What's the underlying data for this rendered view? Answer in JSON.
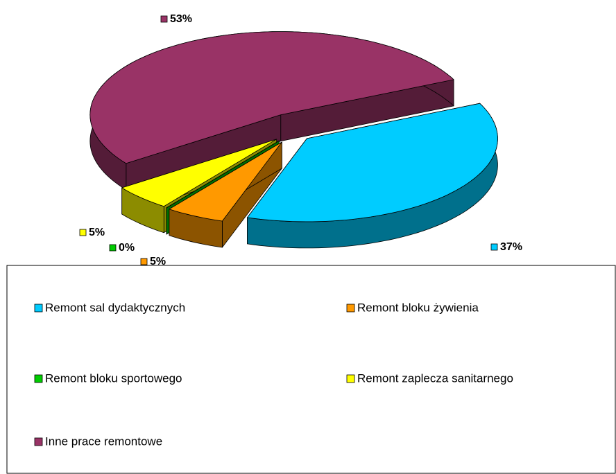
{
  "chart_data": {
    "type": "pie3d",
    "categories": [
      "Remont sal dydaktycznych",
      "Remont bloku żywienia",
      "Remont bloku sportowego",
      "Remont zaplecza sanitarnego",
      "Inne prace remontowe"
    ],
    "values": [
      37,
      5,
      0,
      5,
      53
    ],
    "value_labels": [
      "37%",
      "5%",
      "0%",
      "5%",
      "53%"
    ],
    "colors": [
      "#00ccff",
      "#ff9900",
      "#00cc00",
      "#ffff00",
      "#993366"
    ],
    "legend": "bottom"
  }
}
